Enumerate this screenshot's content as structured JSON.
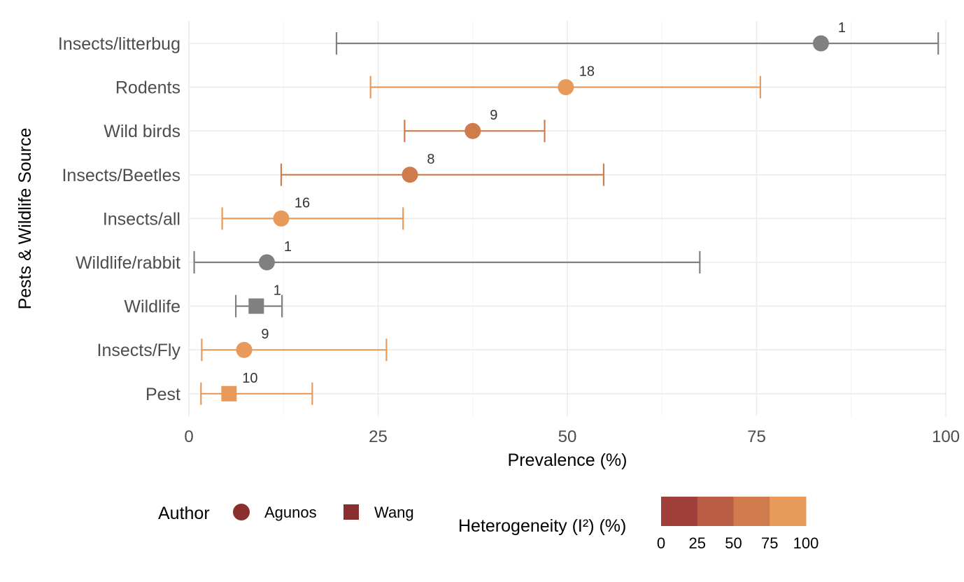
{
  "chart_data": {
    "type": "forest",
    "xlabel": "Prevalence (%)",
    "ylabel": "Pests & Wildlife Source",
    "xlim": [
      0,
      100
    ],
    "x_ticks": [
      0,
      25,
      50,
      75,
      100
    ],
    "grid": true,
    "rows": [
      {
        "label": "Insects/litterbug",
        "estimate": 83.5,
        "lower": 19.5,
        "upper": 99,
        "n": "1",
        "author": "Agunos",
        "heterogeneity": null
      },
      {
        "label": "Rodents",
        "estimate": 49.8,
        "lower": 24,
        "upper": 75.5,
        "n": "18",
        "author": "Agunos",
        "heterogeneity": 90
      },
      {
        "label": "Wild birds",
        "estimate": 37.5,
        "lower": 28.5,
        "upper": 47,
        "n": "9",
        "author": "Agunos",
        "heterogeneity": 65
      },
      {
        "label": "Insects/Beetles",
        "estimate": 29.2,
        "lower": 12.2,
        "upper": 54.8,
        "n": "8",
        "author": "Agunos",
        "heterogeneity": 65
      },
      {
        "label": "Insects/all",
        "estimate": 12.2,
        "lower": 4.4,
        "upper": 28.3,
        "n": "16",
        "author": "Agunos",
        "heterogeneity": 90
      },
      {
        "label": "Wildlife/rabbit",
        "estimate": 10.3,
        "lower": 0.7,
        "upper": 67.5,
        "n": "1",
        "author": "Agunos",
        "heterogeneity": null
      },
      {
        "label": "Wildlife",
        "estimate": 8.9,
        "lower": 6.2,
        "upper": 12.3,
        "n": "1",
        "author": "Wang",
        "heterogeneity": null
      },
      {
        "label": "Insects/Fly",
        "estimate": 7.3,
        "lower": 1.7,
        "upper": 26.1,
        "n": "9",
        "author": "Agunos",
        "heterogeneity": 90
      },
      {
        "label": "Pest",
        "estimate": 5.3,
        "lower": 1.6,
        "upper": 16.3,
        "n": "10",
        "author": "Wang",
        "heterogeneity": 90
      }
    ],
    "legend": {
      "placement": "bottom",
      "author_title": "Author",
      "authors": [
        {
          "name": "Agunos",
          "shape": "circle"
        },
        {
          "name": "Wang",
          "shape": "square"
        }
      ],
      "heterogeneity_title": "Heterogeneity (I²) (%)",
      "heterogeneity_ticks": [
        "0",
        "25",
        "50",
        "75",
        "100"
      ],
      "heterogeneity_colors": [
        "#a1403a",
        "#b85c43",
        "#cf7b4c",
        "#e89a5a"
      ]
    },
    "colors": {
      "single_study": "#808080",
      "legend_marker": "#8b2e2e"
    }
  }
}
